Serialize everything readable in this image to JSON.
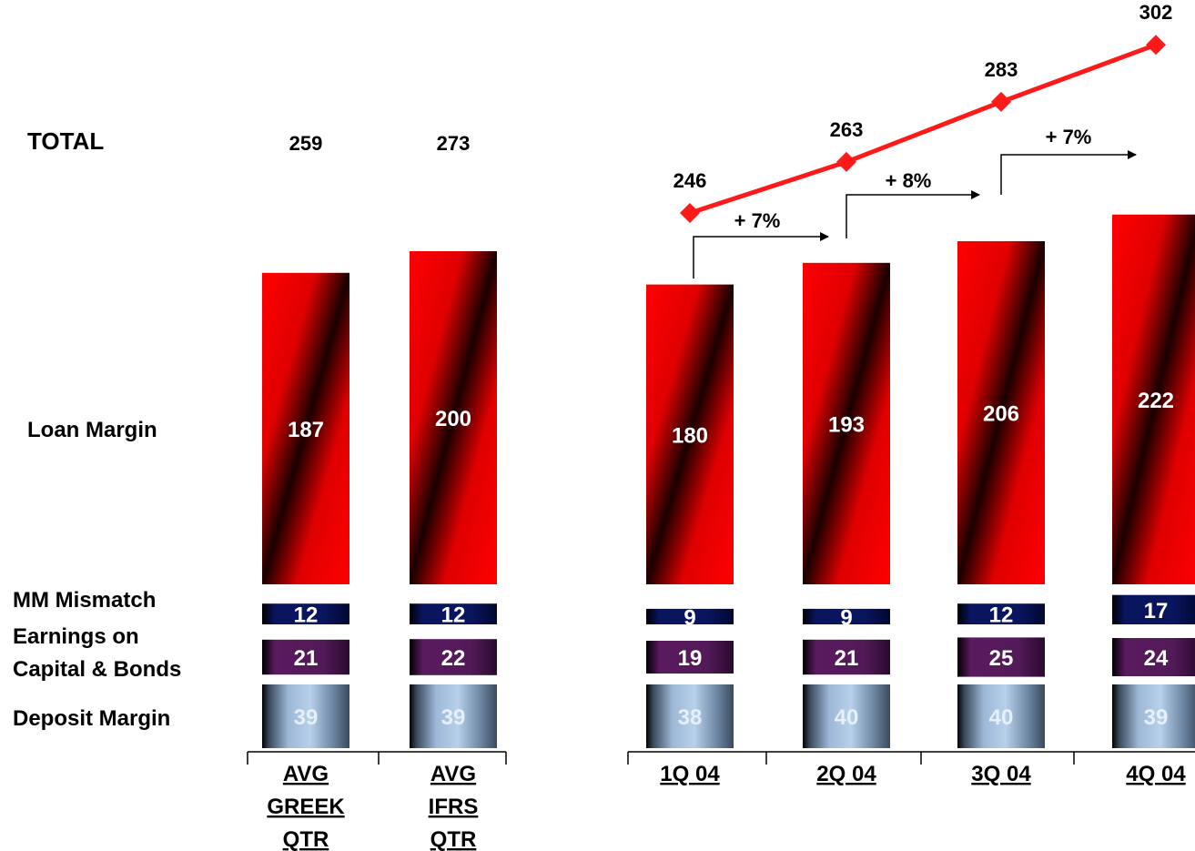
{
  "chart_data": {
    "type": "bar",
    "stacked": true,
    "categories": [
      [
        "AVG",
        "GREEK",
        "QTR"
      ],
      [
        "AVG",
        "IFRS",
        "QTR"
      ],
      [
        "1Q 04"
      ],
      [
        "2Q 04"
      ],
      [
        "3Q 04"
      ],
      [
        "4Q 04"
      ]
    ],
    "series": [
      {
        "name": "Deposit Margin",
        "values": [
          39,
          39,
          38,
          40,
          40,
          39
        ],
        "color": "#8fb3d9"
      },
      {
        "name": "Earnings on Capital & Bonds",
        "values": [
          21,
          22,
          19,
          21,
          25,
          24
        ],
        "color": "#5a1a5e"
      },
      {
        "name": "MM Mismatch",
        "values": [
          12,
          12,
          9,
          9,
          12,
          17
        ],
        "color": "#0a1560"
      },
      {
        "name": "Loan Margin",
        "values": [
          187,
          200,
          180,
          193,
          206,
          222
        ],
        "color": "#ff0000"
      }
    ],
    "row_labels": {
      "total": "TOTAL",
      "loan": "Loan Margin",
      "mm": "MM Mismatch",
      "earnings_line1": "Earnings on",
      "earnings_line2": "Capital & Bonds",
      "deposit": "Deposit Margin"
    },
    "totals": [
      259,
      273,
      246,
      263,
      283,
      302
    ],
    "total_line": {
      "categories": [
        "1Q 04",
        "2Q 04",
        "3Q 04",
        "4Q 04"
      ],
      "values": [
        246,
        263,
        283,
        302
      ],
      "color": "#ff1a1a"
    },
    "growth_annotations": [
      {
        "from": "1Q 04",
        "to": "2Q 04",
        "label": "+ 7%"
      },
      {
        "from": "2Q 04",
        "to": "3Q 04",
        "label": "+ 8%"
      },
      {
        "from": "3Q 04",
        "to": "4Q 04",
        "label": "+ 7%"
      }
    ],
    "legend": "none",
    "grid": false
  }
}
